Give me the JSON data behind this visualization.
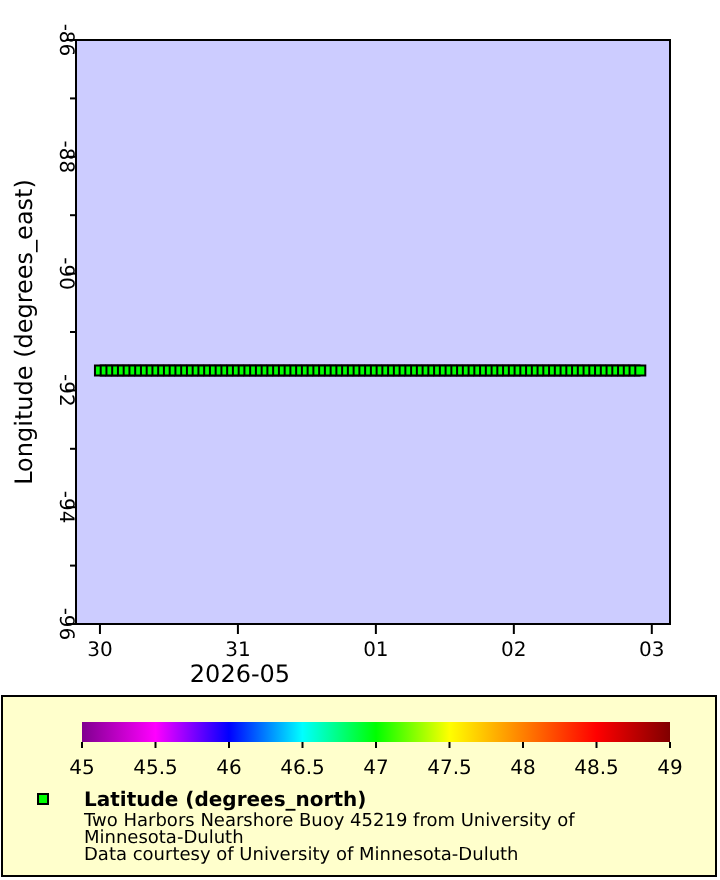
{
  "chart_data": {
    "type": "scatter",
    "xlabel": "2026-05",
    "ylabel": "Longitude (degrees_east)",
    "clabel": "Latitude (degrees_north)",
    "annotations": [
      "Two Harbors Nearshore Buoy 45219 from University of Minnesota-Duluth",
      "Data courtesy of University of Minnesota-Duluth"
    ],
    "x": [
      "2026-05-30T00:00",
      "2026-05-30T01:00",
      "2026-05-30T02:00",
      "2026-05-30T03:00",
      "2026-05-30T04:00",
      "2026-05-30T05:00",
      "2026-05-30T06:00",
      "2026-05-30T07:00",
      "2026-05-30T08:00",
      "2026-05-30T09:00",
      "2026-05-30T10:00",
      "2026-05-30T11:00",
      "2026-05-30T12:00",
      "2026-05-30T13:00",
      "2026-05-30T14:00",
      "2026-05-30T15:00",
      "2026-05-30T16:00",
      "2026-05-30T17:00",
      "2026-05-30T18:00",
      "2026-05-30T19:00",
      "2026-05-30T20:00",
      "2026-05-30T21:00",
      "2026-05-30T22:00",
      "2026-05-30T23:00",
      "2026-05-31T00:00",
      "2026-05-31T01:00",
      "2026-05-31T02:00",
      "2026-05-31T03:00",
      "2026-05-31T04:00",
      "2026-05-31T05:00",
      "2026-05-31T06:00",
      "2026-05-31T07:00",
      "2026-05-31T08:00",
      "2026-05-31T09:00",
      "2026-05-31T10:00",
      "2026-05-31T11:00",
      "2026-05-31T12:00",
      "2026-05-31T13:00",
      "2026-05-31T14:00",
      "2026-05-31T15:00",
      "2026-05-31T16:00",
      "2026-05-31T17:00",
      "2026-05-31T18:00",
      "2026-05-31T19:00",
      "2026-05-31T20:00",
      "2026-05-31T21:00",
      "2026-05-31T22:00",
      "2026-05-31T23:00",
      "2026-06-01T00:00",
      "2026-06-01T01:00",
      "2026-06-01T02:00",
      "2026-06-01T03:00",
      "2026-06-01T04:00",
      "2026-06-01T05:00",
      "2026-06-01T06:00",
      "2026-06-01T07:00",
      "2026-06-01T08:00",
      "2026-06-01T09:00",
      "2026-06-01T10:00",
      "2026-06-01T11:00",
      "2026-06-01T12:00",
      "2026-06-01T13:00",
      "2026-06-01T14:00",
      "2026-06-01T15:00",
      "2026-06-01T16:00",
      "2026-06-01T17:00",
      "2026-06-01T18:00",
      "2026-06-01T19:00",
      "2026-06-01T20:00",
      "2026-06-01T21:00",
      "2026-06-01T22:00",
      "2026-06-01T23:00",
      "2026-06-02T00:00",
      "2026-06-02T01:00",
      "2026-06-02T02:00",
      "2026-06-02T03:00",
      "2026-06-02T04:00",
      "2026-06-02T05:00",
      "2026-06-02T06:00",
      "2026-06-02T07:00",
      "2026-06-02T08:00",
      "2026-06-02T09:00",
      "2026-06-02T10:00",
      "2026-06-02T11:00",
      "2026-06-02T12:00",
      "2026-06-02T13:00",
      "2026-06-02T14:00",
      "2026-06-02T15:00",
      "2026-06-02T16:00",
      "2026-06-02T17:00",
      "2026-06-02T18:00",
      "2026-06-02T19:00",
      "2026-06-02T20:00",
      "2026-06-02T21:00",
      "2026-06-02T22:00"
    ],
    "values": [
      -91.66,
      -91.66,
      -91.66,
      -91.66,
      -91.66,
      -91.66,
      -91.66,
      -91.66,
      -91.66,
      -91.66,
      -91.66,
      -91.66,
      -91.66,
      -91.66,
      -91.66,
      -91.66,
      -91.66,
      -91.66,
      -91.66,
      -91.66,
      -91.66,
      -91.66,
      -91.66,
      -91.66,
      -91.66,
      -91.66,
      -91.66,
      -91.66,
      -91.66,
      -91.66,
      -91.66,
      -91.66,
      -91.66,
      -91.66,
      -91.66,
      -91.66,
      -91.66,
      -91.66,
      -91.66,
      -91.66,
      -91.66,
      -91.66,
      -91.66,
      -91.66,
      -91.66,
      -91.66,
      -91.66,
      -91.66,
      -91.66,
      -91.66,
      -91.66,
      -91.66,
      -91.66,
      -91.66,
      -91.66,
      -91.66,
      -91.66,
      -91.66,
      -91.66,
      -91.66,
      -91.66,
      -91.66,
      -91.66,
      -91.66,
      -91.66,
      -91.66,
      -91.66,
      -91.66,
      -91.66,
      -91.66,
      -91.66,
      -91.66,
      -91.66,
      -91.66,
      -91.66,
      -91.66,
      -91.66,
      -91.66,
      -91.66,
      -91.66,
      -91.66,
      -91.66,
      -91.66,
      -91.66,
      -91.66,
      -91.66,
      -91.66,
      -91.66,
      -91.66,
      -91.66,
      -91.66,
      -91.66,
      -91.66,
      -91.66,
      -91.66
    ],
    "cvalues": [
      47,
      47,
      47,
      47,
      47,
      47,
      47,
      47,
      47,
      47,
      47,
      47,
      47,
      47,
      47,
      47,
      47,
      47,
      47,
      47,
      47,
      47,
      47,
      47,
      47,
      47,
      47,
      47,
      47,
      47,
      47,
      47,
      47,
      47,
      47,
      47,
      47,
      47,
      47,
      47,
      47,
      47,
      47,
      47,
      47,
      47,
      47,
      47,
      47,
      47,
      47,
      47,
      47,
      47,
      47,
      47,
      47,
      47,
      47,
      47,
      47,
      47,
      47,
      47,
      47,
      47,
      47,
      47,
      47,
      47,
      47,
      47,
      47,
      47,
      47,
      47,
      47,
      47,
      47,
      47,
      47,
      47,
      47,
      47,
      47,
      47,
      47,
      47,
      47,
      47,
      47,
      47,
      47,
      47,
      47
    ],
    "marker": "square",
    "xlim": [
      "2026-05-29T19:50",
      "2026-06-03T03:10"
    ],
    "xticks": [
      {
        "value": "2026-05-30",
        "label": "30"
      },
      {
        "value": "2026-05-31",
        "label": "31"
      },
      {
        "value": "2026-06-01",
        "label": "01"
      },
      {
        "value": "2026-06-02",
        "label": "02"
      },
      {
        "value": "2026-06-03",
        "label": "03"
      }
    ],
    "ylim": [
      -96,
      -86
    ],
    "yticks": [
      -96,
      {
        "value": -95,
        "label": null
      },
      -94,
      {
        "value": -93,
        "label": null
      },
      -92,
      {
        "value": -91,
        "label": null
      },
      -90,
      {
        "value": -89,
        "label": null
      },
      -88,
      {
        "value": -87,
        "label": null
      },
      -86
    ],
    "clim": [
      45,
      49
    ],
    "cticks": [
      45,
      45.5,
      46,
      46.5,
      47,
      47.5,
      48,
      48.5,
      49
    ]
  }
}
